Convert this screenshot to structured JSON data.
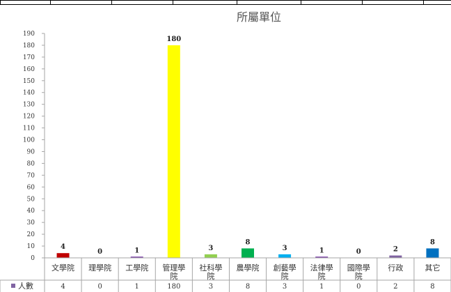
{
  "chart_data": {
    "type": "bar",
    "title": "所屬單位",
    "categories": [
      [
        "文學院"
      ],
      [
        "理學院"
      ],
      [
        "工學院"
      ],
      [
        "管理學",
        "院"
      ],
      [
        "社科學",
        "院"
      ],
      [
        "農學院"
      ],
      [
        "創藝學",
        "院"
      ],
      [
        "法律學",
        "院"
      ],
      [
        "國際學",
        "院"
      ],
      [
        "行政"
      ],
      [
        "其它"
      ]
    ],
    "values": [
      4,
      0,
      1,
      180,
      3,
      8,
      3,
      1,
      0,
      2,
      8
    ],
    "colors": [
      "#c00000",
      "#c00000",
      "#7030a0",
      "#ffff00",
      "#92d050",
      "#00b050",
      "#00b0f0",
      "#7030a0",
      "#7030a0",
      "#8064a2",
      "#0070c0"
    ],
    "series_name": "人數",
    "legend_color": "#8064a2",
    "ylim": [
      0,
      190
    ],
    "ytick_step": 10,
    "grid": false
  }
}
